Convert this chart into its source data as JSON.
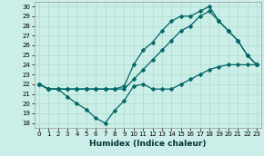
{
  "xlabel": "Humidex (Indice chaleur)",
  "bg_color": "#cceee8",
  "line_color": "#006666",
  "grid_color": "#aaddcc",
  "xlim": [
    -0.5,
    23.5
  ],
  "ylim": [
    17.5,
    30.5
  ],
  "yticks": [
    18,
    19,
    20,
    21,
    22,
    23,
    24,
    25,
    26,
    27,
    28,
    29,
    30
  ],
  "xticks": [
    0,
    1,
    2,
    3,
    4,
    5,
    6,
    7,
    8,
    9,
    10,
    11,
    12,
    13,
    14,
    15,
    16,
    17,
    18,
    19,
    20,
    21,
    22,
    23
  ],
  "line_min_x": [
    0,
    1,
    2,
    3,
    4,
    5,
    6,
    7,
    8,
    9,
    10,
    11,
    12,
    13,
    14,
    15,
    16,
    17,
    18,
    19,
    20,
    21,
    22,
    23
  ],
  "line_min_y": [
    22.0,
    21.5,
    21.5,
    20.7,
    20.0,
    19.4,
    18.5,
    18.0,
    19.3,
    20.3,
    21.8,
    22.0,
    21.5,
    21.5,
    21.5,
    22.0,
    22.5,
    23.0,
    23.5,
    23.8,
    24.0,
    24.0,
    24.0,
    24.0
  ],
  "line_med_x": [
    0,
    1,
    2,
    3,
    4,
    5,
    6,
    7,
    8,
    9,
    10,
    11,
    12,
    13,
    14,
    15,
    16,
    17,
    18,
    19,
    20,
    21,
    22,
    23
  ],
  "line_med_y": [
    22.0,
    21.5,
    21.5,
    21.5,
    21.5,
    21.5,
    21.5,
    21.5,
    21.5,
    21.5,
    22.5,
    23.5,
    24.5,
    25.5,
    26.5,
    27.5,
    28.0,
    29.0,
    29.5,
    28.5,
    27.5,
    26.5,
    25.0,
    24.0
  ],
  "line_max_x": [
    0,
    1,
    2,
    3,
    4,
    5,
    6,
    7,
    8,
    9,
    10,
    11,
    12,
    13,
    14,
    15,
    16,
    17,
    18,
    19,
    20,
    21,
    22,
    23
  ],
  "line_max_y": [
    22.0,
    21.5,
    21.5,
    21.5,
    21.5,
    21.5,
    21.5,
    21.5,
    21.5,
    21.8,
    24.0,
    25.5,
    26.3,
    27.5,
    28.5,
    29.0,
    29.0,
    29.5,
    30.0,
    28.5,
    27.5,
    26.5,
    25.0,
    24.0
  ],
  "marker_size": 2.5,
  "linewidth": 0.9,
  "tick_fontsize": 5.0,
  "xlabel_fontsize": 6.5
}
